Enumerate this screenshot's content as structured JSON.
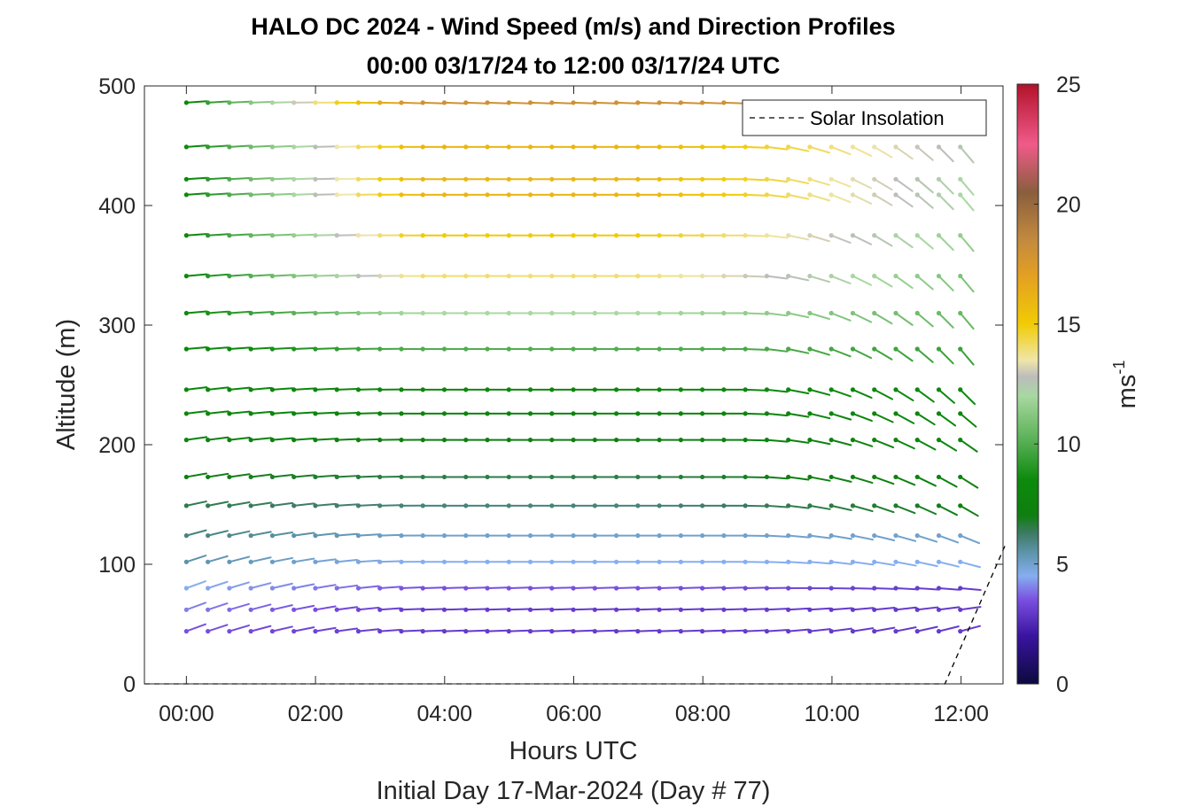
{
  "chart_data": {
    "type": "wind-barb profile",
    "title_line1": "HALO DC 2024 - Wind Speed (m/s) and Direction Profiles",
    "title_line2": "00:00 03/17/24 to 12:00 03/17/24  UTC",
    "xlabel": "Hours UTC",
    "xlabel2": "Initial Day 17-Mar-2024 (Day # 77)",
    "ylabel": "Altitude (m)",
    "xlim_hours": [
      -0.65,
      12.65
    ],
    "ylim": [
      0,
      500
    ],
    "x_ticks": [
      {
        "hour": 0,
        "label": "00:00"
      },
      {
        "hour": 2,
        "label": "02:00"
      },
      {
        "hour": 4,
        "label": "04:00"
      },
      {
        "hour": 6,
        "label": "06:00"
      },
      {
        "hour": 8,
        "label": "08:00"
      },
      {
        "hour": 10,
        "label": "10:00"
      },
      {
        "hour": 12,
        "label": "12:00"
      }
    ],
    "y_ticks": [
      {
        "value": 0,
        "label": "0"
      },
      {
        "value": 100,
        "label": "100"
      },
      {
        "value": 200,
        "label": "200"
      },
      {
        "value": 300,
        "label": "300"
      },
      {
        "value": 400,
        "label": "400"
      },
      {
        "value": 500,
        "label": "500"
      }
    ],
    "legend": {
      "label": "Solar Insolation",
      "location": "top-right"
    },
    "colorbar": {
      "label": "ms",
      "label_superscript": "-1",
      "range": [
        0,
        25
      ],
      "ticks": [
        {
          "value": 0,
          "label": "0"
        },
        {
          "value": 5,
          "label": "5"
        },
        {
          "value": 10,
          "label": "10"
        },
        {
          "value": 15,
          "label": "15"
        },
        {
          "value": 20,
          "label": "20"
        },
        {
          "value": 25,
          "label": "25"
        }
      ],
      "stops": [
        {
          "value": 0,
          "color": "#0b0a3d"
        },
        {
          "value": 2,
          "color": "#3a14a0"
        },
        {
          "value": 3.5,
          "color": "#7a4fe0"
        },
        {
          "value": 4.5,
          "color": "#86aef0"
        },
        {
          "value": 5.5,
          "color": "#5c93a8"
        },
        {
          "value": 6.3,
          "color": "#3c7a62"
        },
        {
          "value": 7,
          "color": "#0f7f10"
        },
        {
          "value": 8.5,
          "color": "#0c8a0c"
        },
        {
          "value": 10,
          "color": "#52ad4f"
        },
        {
          "value": 12,
          "color": "#a8d8a0"
        },
        {
          "value": 12.8,
          "color": "#bcbcbc"
        },
        {
          "value": 13.5,
          "color": "#efe6a8"
        },
        {
          "value": 15,
          "color": "#f1cb05"
        },
        {
          "value": 17,
          "color": "#e3a022"
        },
        {
          "value": 18.5,
          "color": "#c38a3e"
        },
        {
          "value": 20.5,
          "color": "#8a5e3e"
        },
        {
          "value": 22.5,
          "color": "#f05a8a"
        },
        {
          "value": 25,
          "color": "#b2122a"
        }
      ]
    },
    "profile": {
      "time_step_hours": 0.333,
      "altitudes_m": [
        44,
        62,
        80,
        102,
        124,
        149,
        173,
        204,
        226,
        246,
        280,
        310,
        341,
        375,
        409,
        422,
        449,
        486
      ],
      "speed_early_ms": [
        3.5,
        4,
        4.5,
        5.5,
        6,
        6.5,
        7,
        7.5,
        8,
        8,
        8,
        8.5,
        8.5,
        8.5,
        8.5,
        8.5,
        8.5,
        8.5
      ],
      "speed_max_ms": [
        3,
        3,
        3.5,
        4.5,
        5,
        6,
        6.5,
        7,
        7.5,
        8,
        10,
        12,
        14,
        15,
        16,
        16,
        16,
        18
      ],
      "speed_late_ms": [
        3,
        3,
        3,
        4.5,
        5,
        7,
        7.5,
        8,
        8,
        8.5,
        9.5,
        10.5,
        11,
        11.5,
        12,
        12,
        12.5,
        18
      ],
      "direction_early_deg": [
        250,
        250,
        250,
        252,
        255,
        258,
        260,
        262,
        263,
        263,
        265,
        265,
        265,
        266,
        266,
        266,
        266,
        266
      ],
      "direction_mid_deg": [
        268,
        268,
        268,
        270,
        270,
        270,
        270,
        270,
        270,
        270,
        270,
        270,
        270,
        270,
        270,
        270,
        270,
        272
      ],
      "direction_late_deg": [
        255,
        262,
        275,
        285,
        292,
        300,
        302,
        305,
        310,
        315,
        320,
        320,
        320,
        320,
        320,
        320,
        320,
        300
      ],
      "last_hour": [
        12.1,
        12.1,
        12.1,
        12.1,
        12.1,
        12.1,
        12.1,
        12.1,
        12.1,
        12.1,
        12.0,
        12.0,
        12.0,
        12.0,
        12.0,
        12.0,
        12.0,
        8.7
      ]
    },
    "solar_insolation": {
      "points": [
        [
          -0.65,
          0
        ],
        [
          11.75,
          0
        ],
        [
          12.7,
          118
        ]
      ]
    }
  }
}
